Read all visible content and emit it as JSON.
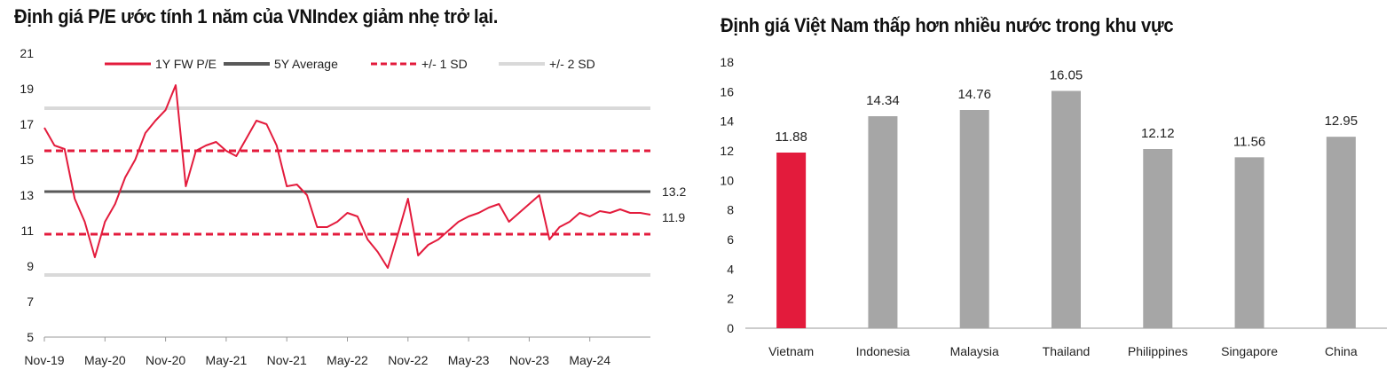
{
  "chart_data": [
    {
      "type": "line",
      "title": "Định giá P/E ước tính 1 năm của VNIndex giảm nhẹ trở lại.",
      "ylim": [
        5,
        21
      ],
      "y_ticks": [
        5,
        7,
        9,
        11,
        13,
        15,
        17,
        19,
        21
      ],
      "x_tick_labels": [
        "Nov-19",
        "May-20",
        "Nov-20",
        "May-21",
        "Nov-21",
        "May-22",
        "Nov-22",
        "May-23",
        "Nov-23",
        "May-24"
      ],
      "legend_placement": "top",
      "grid": false,
      "colors": {
        "pe": "#e31b3c",
        "avg": "#595959",
        "sd1": "#e31b3c",
        "sd2": "#d9d9d9"
      },
      "series": [
        {
          "name": "1Y FW P/E",
          "style": "solid",
          "x": [
            "2019-11",
            "2019-12",
            "2020-01",
            "2020-02",
            "2020-03",
            "2020-04",
            "2020-05",
            "2020-06",
            "2020-07",
            "2020-08",
            "2020-09",
            "2020-10",
            "2020-11",
            "2020-12",
            "2021-01",
            "2021-02",
            "2021-03",
            "2021-04",
            "2021-05",
            "2021-06",
            "2021-07",
            "2021-08",
            "2021-09",
            "2021-10",
            "2021-11",
            "2021-12",
            "2022-01",
            "2022-02",
            "2022-03",
            "2022-04",
            "2022-05",
            "2022-06",
            "2022-07",
            "2022-08",
            "2022-09",
            "2022-10",
            "2022-11",
            "2022-12",
            "2023-01",
            "2023-02",
            "2023-03",
            "2023-04",
            "2023-05",
            "2023-06",
            "2023-07",
            "2023-08",
            "2023-09",
            "2023-10",
            "2023-11",
            "2023-12",
            "2024-01",
            "2024-02",
            "2024-03",
            "2024-04",
            "2024-05",
            "2024-06",
            "2024-07",
            "2024-08",
            "2024-09",
            "2024-10",
            "2024-11"
          ],
          "values": [
            16.8,
            15.8,
            15.6,
            12.8,
            11.5,
            9.5,
            11.5,
            12.5,
            14.0,
            15.0,
            16.5,
            17.2,
            17.8,
            19.2,
            13.5,
            15.5,
            15.8,
            16.0,
            15.5,
            15.2,
            16.2,
            17.2,
            17.0,
            15.8,
            13.5,
            13.6,
            13.0,
            11.2,
            11.2,
            11.5,
            12.0,
            11.8,
            10.5,
            9.8,
            8.9,
            10.8,
            12.8,
            9.6,
            10.2,
            10.5,
            11.0,
            11.5,
            11.8,
            12.0,
            12.3,
            12.5,
            11.5,
            12.0,
            12.5,
            13.0,
            10.5,
            11.2,
            11.5,
            12.0,
            11.8,
            12.1,
            12.0,
            12.2,
            12.0,
            12.0,
            11.9
          ]
        },
        {
          "name": "5Y Average",
          "style": "solid",
          "x": [
            "2019-11",
            "2024-11"
          ],
          "values": [
            13.2,
            13.2
          ]
        },
        {
          "name": "+/- 1 SD",
          "style": "dashed",
          "x": [
            "2019-11",
            "2024-11"
          ],
          "values": [
            15.5,
            15.5
          ],
          "lower": [
            10.8,
            10.8
          ]
        },
        {
          "name": "+/- 2 SD",
          "style": "solid",
          "x": [
            "2019-11",
            "2024-11"
          ],
          "values": [
            17.9,
            17.9
          ],
          "lower": [
            8.5,
            8.5
          ]
        }
      ],
      "end_labels": [
        "13.2",
        "11.9"
      ]
    },
    {
      "type": "bar",
      "title": "Định giá Việt Nam thấp hơn nhiều nước trong khu vực",
      "categories": [
        "Vietnam",
        "Indonesia",
        "Malaysia",
        "Thailand",
        "Philippines",
        "Singapore",
        "China"
      ],
      "values": [
        11.88,
        14.34,
        14.76,
        16.05,
        12.12,
        11.56,
        12.95
      ],
      "value_labels": [
        "11.88",
        "14.34",
        "14.76",
        "16.05",
        "12.12",
        "11.56",
        "12.95"
      ],
      "ylim": [
        0,
        18
      ],
      "y_ticks": [
        0,
        2,
        4,
        6,
        8,
        10,
        12,
        14,
        16,
        18
      ],
      "grid": false,
      "colors": {
        "highlight": "#e31b3c",
        "default": "#a6a6a6"
      },
      "highlight_index": 0
    }
  ]
}
